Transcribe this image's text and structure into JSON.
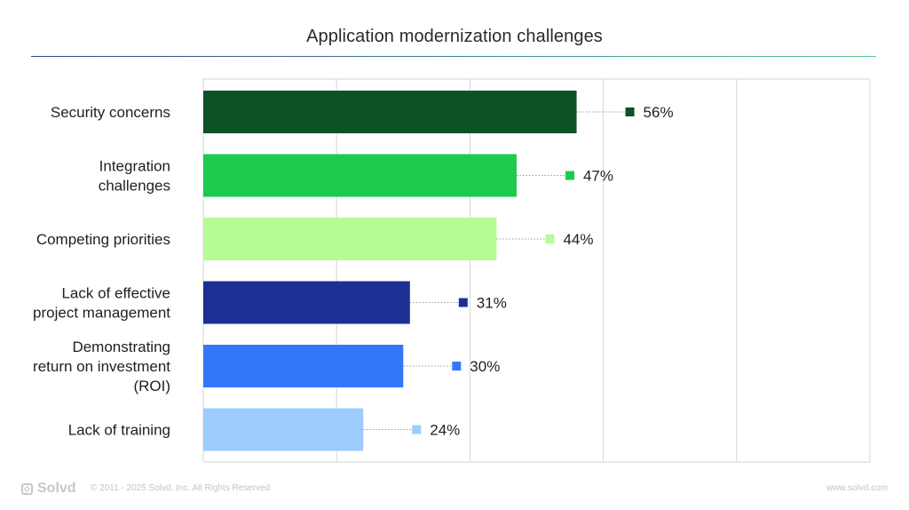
{
  "chart_data": {
    "type": "bar",
    "orientation": "horizontal",
    "title": "Application modernization challenges",
    "categories": [
      "Security concerns",
      "Integration challenges",
      "Competing priorities",
      "Lack of effective project management",
      "Demonstrating return on investment (ROI)",
      "Lack of training"
    ],
    "category_lines": [
      [
        "Security concerns"
      ],
      [
        "Integration",
        "challenges"
      ],
      [
        "Competing priorities"
      ],
      [
        "Lack of effective",
        "project management"
      ],
      [
        "Demonstrating",
        "return on investment",
        "(ROI)"
      ],
      [
        "Lack of training"
      ]
    ],
    "values": [
      56,
      47,
      44,
      31,
      30,
      24
    ],
    "value_labels": [
      "56%",
      "47%",
      "44%",
      "31%",
      "30%",
      "24%"
    ],
    "colors": [
      "#0b5225",
      "#1ccb4d",
      "#b6fb94",
      "#1c2f95",
      "#3278f8",
      "#9dcbfc"
    ],
    "xlim": [
      0,
      100
    ],
    "grid": true,
    "legend": "none"
  },
  "footer": {
    "brand": "Solvd",
    "copyright": "© 2011 - 2025 Solvd, Inc. All Rights Reserved",
    "website": "www.solvd.com"
  }
}
